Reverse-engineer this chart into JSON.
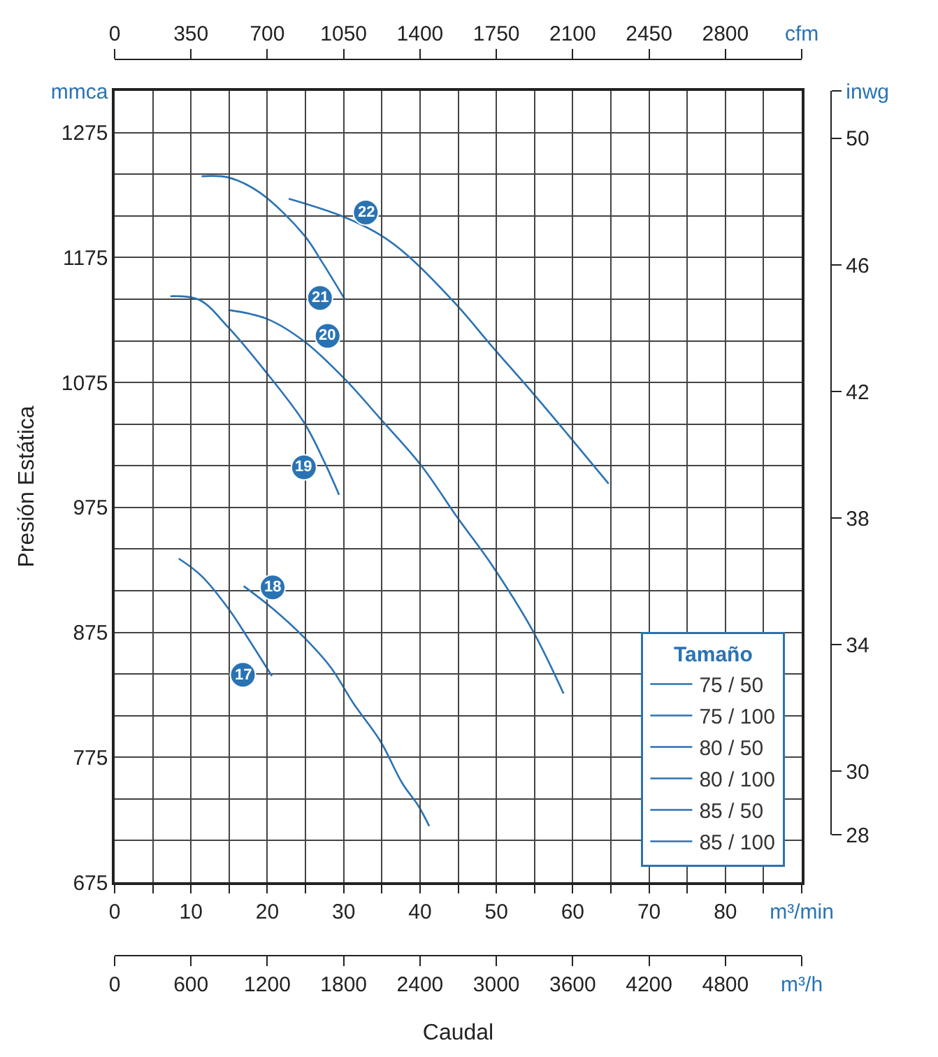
{
  "chart_data": {
    "type": "line",
    "xlabel": "Caudal",
    "ylabel": "Presión Estática",
    "legend_title": "Tamaño",
    "legend": "bottom right",
    "grid": true,
    "marker": "none",
    "line_style": "solid",
    "xlim": [
      0,
      90
    ],
    "xticks": [
      0,
      {
        "value": 5,
        "label": null
      },
      10,
      {
        "value": 15,
        "label": null
      },
      20,
      {
        "value": 25,
        "label": null
      },
      30,
      {
        "value": 35,
        "label": null
      },
      40,
      {
        "value": 45,
        "label": null
      },
      50,
      {
        "value": 55,
        "label": null
      },
      60,
      {
        "value": 65,
        "label": null
      },
      70,
      {
        "value": 75,
        "label": null
      },
      80,
      {
        "value": 85,
        "label": null
      },
      {
        "value": 90,
        "label": "m³/min"
      }
    ],
    "x2lim": [
      0,
      3150
    ],
    "x2ticks": [
      0,
      350,
      700,
      1050,
      1400,
      1750,
      2100,
      2450,
      2800,
      {
        "value": 3150,
        "label": "cfm"
      }
    ],
    "ylim": [
      675,
      1308.3
    ],
    "yticks": [
      675,
      {
        "value": 708.3,
        "label": null
      },
      {
        "value": 741.7,
        "label": null
      },
      775,
      {
        "value": 808.3,
        "label": null
      },
      {
        "value": 841.7,
        "label": null
      },
      875,
      {
        "value": 908.3,
        "label": null
      },
      {
        "value": 941.7,
        "label": null
      },
      975,
      {
        "value": 1008.3,
        "label": null
      },
      {
        "value": 1041.7,
        "label": null
      },
      1075,
      {
        "value": 1108.3,
        "label": null
      },
      {
        "value": 1141.7,
        "label": null
      },
      1175,
      {
        "value": 1208.3,
        "label": null
      },
      {
        "value": 1241.7,
        "label": null
      },
      1275,
      {
        "value": 1308.3,
        "label": "mmca"
      }
    ],
    "y2lim": [
      28,
      51.5
    ],
    "y2ticks": [
      28,
      30,
      34,
      38,
      42,
      46,
      50,
      {
        "value": 51.5,
        "label": "inwg"
      }
    ],
    "series": [
      {
        "name": "75 / 50",
        "color": "#2a73b3",
        "x": [
          8.4,
          11.4,
          14.9,
          17.5,
          20.6
        ],
        "values": [
          934,
          920,
          894,
          870,
          840
        ]
      },
      {
        "name": "75 / 100",
        "color": "#2a73b3",
        "x": [
          16.9,
          20.7,
          24.8,
          28.3,
          31.3,
          34.8,
          37.7,
          39.8,
          41.2
        ],
        "values": [
          912,
          894,
          871,
          847,
          818,
          788,
          754,
          736,
          720
        ]
      },
      {
        "name": "80 / 50",
        "color": "#2a73b3",
        "x": [
          7.3,
          11.1,
          14.9,
          19.6,
          24.8,
          27.5,
          29.4
        ],
        "values": [
          1144,
          1141,
          1119,
          1085,
          1043,
          1011,
          985
        ]
      },
      {
        "name": "80 / 100",
        "color": "#2a73b3",
        "x": [
          14.9,
          19.9,
          24.8,
          30.1,
          34.8,
          40.1,
          45.0,
          49.4,
          54.7,
          58.8
        ],
        "values": [
          1133,
          1126,
          1108,
          1078,
          1046,
          1009,
          966,
          929,
          877,
          826
        ]
      },
      {
        "name": "85 / 50",
        "color": "#2a73b3",
        "x": [
          11.4,
          14.9,
          19.0,
          24.8,
          27.2,
          30.2
        ],
        "values": [
          1240,
          1239,
          1227,
          1193,
          1171,
          1141
        ]
      },
      {
        "name": "85 / 100",
        "color": "#2a73b3",
        "x": [
          22.8,
          29.8,
          34.8,
          38.3,
          44.8,
          49.4,
          54.7,
          59.4,
          64.7
        ],
        "values": [
          1222,
          1208,
          1193,
          1177,
          1137,
          1104,
          1067,
          1033,
          994
        ]
      }
    ],
    "annotations": [
      {
        "text": "17",
        "x": 16.8,
        "y": 841
      },
      {
        "text": "18",
        "x": 20.7,
        "y": 911
      },
      {
        "text": "19",
        "x": 24.8,
        "y": 1007
      },
      {
        "text": "20",
        "x": 27.9,
        "y": 1112.2
      },
      {
        "text": "21",
        "x": 26.9,
        "y": 1142.6
      },
      {
        "text": "22",
        "x": 32.9,
        "y": 1211
      },
      "0",
      "600",
      "1200",
      "1800",
      "2400",
      "3000",
      "3600",
      "4200",
      "4800",
      "m³/h"
    ]
  }
}
